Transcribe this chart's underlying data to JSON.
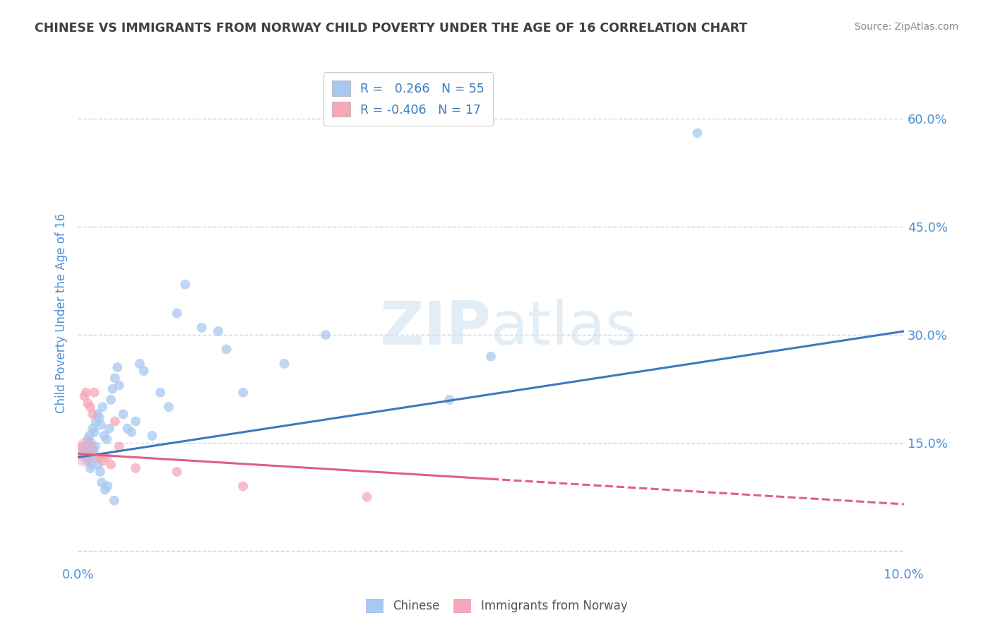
{
  "title": "CHINESE VS IMMIGRANTS FROM NORWAY CHILD POVERTY UNDER THE AGE OF 16 CORRELATION CHART",
  "source": "Source: ZipAtlas.com",
  "ylabel": "Child Poverty Under the Age of 16",
  "xlim": [
    0.0,
    10.0
  ],
  "ylim": [
    -2.0,
    68.0
  ],
  "ytick_vals": [
    0,
    15,
    30,
    45,
    60
  ],
  "ytick_labels": [
    "",
    "15.0%",
    "30.0%",
    "45.0%",
    "60.0%"
  ],
  "xtick_vals": [
    0,
    10
  ],
  "xtick_labels": [
    "0.0%",
    "10.0%"
  ],
  "chinese_color": "#a8c8f0",
  "norway_color": "#f5a8b8",
  "trend_blue": "#3a7abf",
  "trend_pink": "#e06080",
  "background_color": "#ffffff",
  "grid_color": "#c8d8ea",
  "title_color": "#404040",
  "axis_label_color": "#4a90d9",
  "tick_color": "#4a90d9",
  "chinese_scatter_x": [
    0.08,
    0.1,
    0.12,
    0.14,
    0.16,
    0.18,
    0.2,
    0.22,
    0.24,
    0.26,
    0.28,
    0.3,
    0.32,
    0.35,
    0.38,
    0.4,
    0.42,
    0.45,
    0.48,
    0.5,
    0.55,
    0.6,
    0.65,
    0.7,
    0.75,
    0.8,
    0.9,
    1.0,
    1.1,
    1.2,
    1.3,
    1.5,
    1.7,
    1.8,
    2.0,
    2.5,
    3.0,
    4.5,
    5.0,
    7.5,
    0.06,
    0.09,
    0.11,
    0.13,
    0.15,
    0.17,
    0.19,
    0.21,
    0.23,
    0.25,
    0.27,
    0.29,
    0.33,
    0.36,
    0.44
  ],
  "chinese_scatter_y": [
    13.5,
    14.5,
    15.5,
    16.0,
    15.0,
    17.0,
    16.5,
    18.0,
    19.0,
    18.5,
    17.5,
    20.0,
    16.0,
    15.5,
    17.0,
    21.0,
    22.5,
    24.0,
    25.5,
    23.0,
    19.0,
    17.0,
    16.5,
    18.0,
    26.0,
    25.0,
    16.0,
    22.0,
    20.0,
    33.0,
    37.0,
    31.0,
    30.5,
    28.0,
    22.0,
    26.0,
    30.0,
    21.0,
    27.0,
    58.0,
    13.5,
    14.0,
    13.0,
    12.5,
    11.5,
    12.0,
    14.0,
    14.5,
    13.0,
    12.0,
    11.0,
    9.5,
    8.5,
    9.0,
    7.0
  ],
  "norway_scatter_x": [
    0.05,
    0.08,
    0.1,
    0.12,
    0.15,
    0.18,
    0.2,
    0.25,
    0.3,
    0.35,
    0.4,
    0.5,
    0.7,
    1.2,
    2.0,
    3.5,
    0.45
  ],
  "norway_scatter_y": [
    14.5,
    21.5,
    22.0,
    20.5,
    20.0,
    19.0,
    22.0,
    13.0,
    12.5,
    13.0,
    12.0,
    14.5,
    11.5,
    11.0,
    9.0,
    7.5,
    18.0
  ],
  "blue_line_x0": 0.0,
  "blue_line_y0": 13.0,
  "blue_line_x1": 10.0,
  "blue_line_y1": 30.5,
  "pink_line_x0": 0.0,
  "pink_line_y0": 13.5,
  "pink_line_x1_solid": 5.0,
  "pink_line_y1_solid": 10.0,
  "pink_line_x1_dash": 10.0,
  "pink_line_y1_dash": 6.5
}
